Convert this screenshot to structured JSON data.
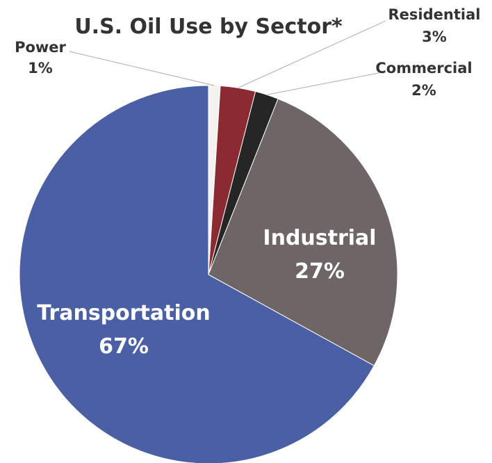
{
  "chart_data": {
    "type": "pie",
    "title": "U.S. Oil Use by Sector*",
    "start_angle_deg": 0,
    "direction": "clockwise",
    "slices": [
      {
        "name": "Power",
        "value": 1,
        "percent_label": "1%",
        "color": "#f4f2ee",
        "label_position": "outside"
      },
      {
        "name": "Residential",
        "value": 3,
        "percent_label": "3%",
        "color": "#8c2a32",
        "label_position": "outside"
      },
      {
        "name": "Commercial",
        "value": 2,
        "percent_label": "2%",
        "color": "#262626",
        "label_position": "outside"
      },
      {
        "name": "Industrial",
        "value": 27,
        "percent_label": "27%",
        "color": "#6d6566",
        "label_position": "inside"
      },
      {
        "name": "Transportation",
        "value": 67,
        "percent_label": "67%",
        "color": "#4b60a4",
        "label_position": "inside"
      }
    ]
  }
}
